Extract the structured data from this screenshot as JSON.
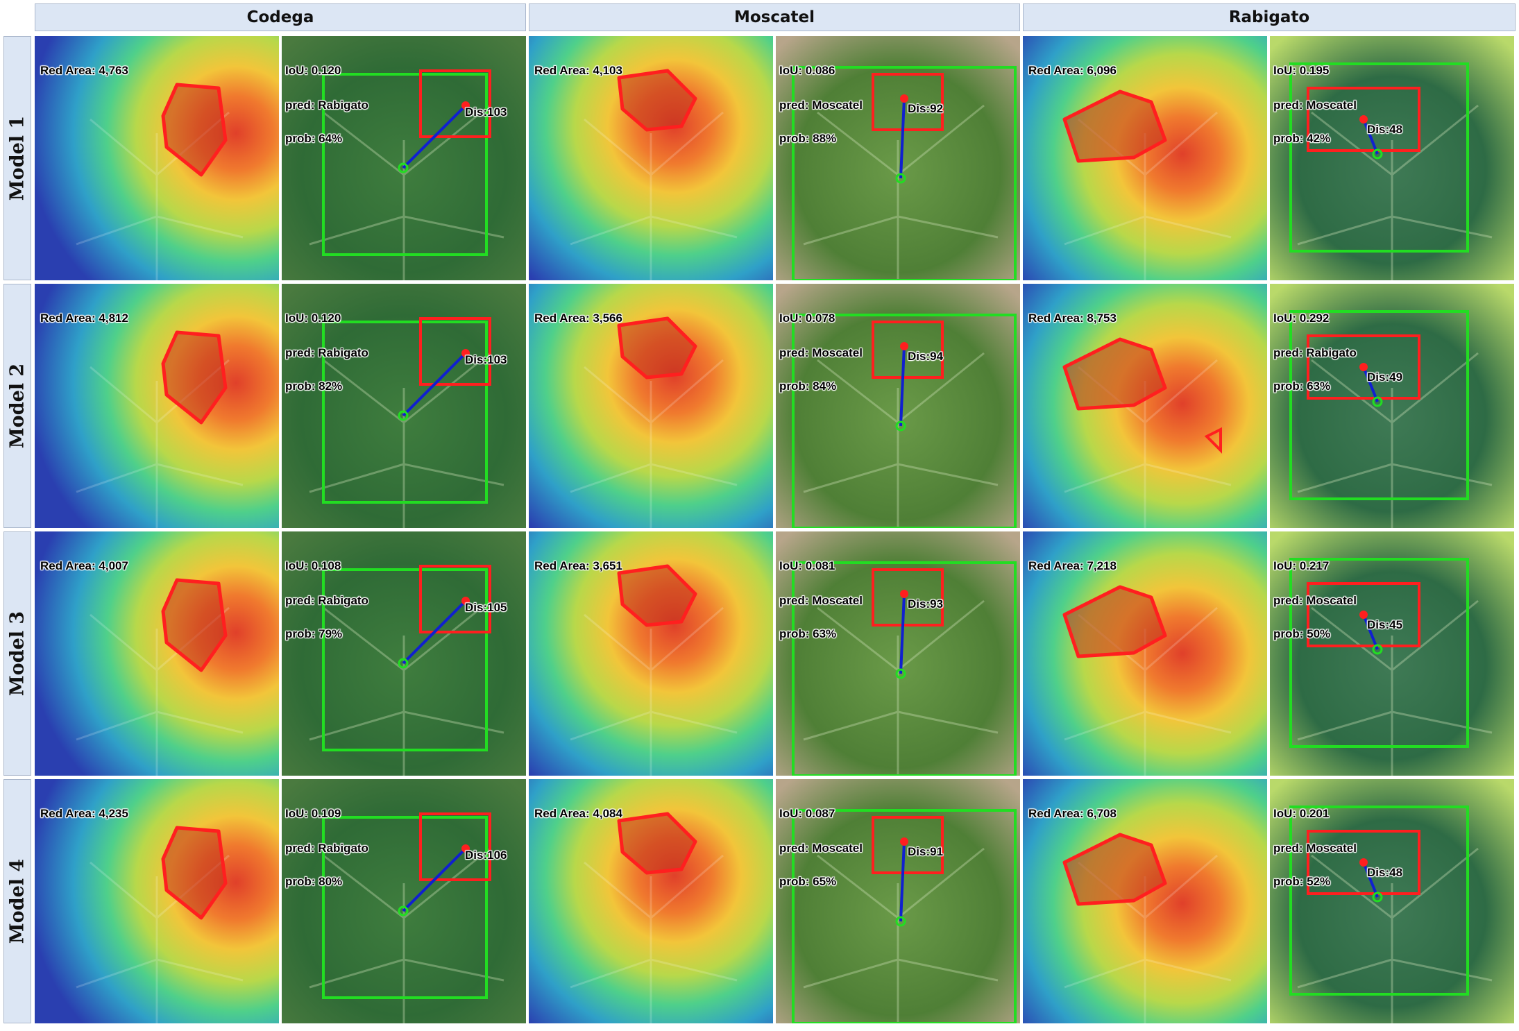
{
  "columns": [
    "Codega",
    "Moscatel",
    "Rabigato"
  ],
  "rows": [
    "Model 1",
    "Model 2",
    "Model 3",
    "Model 4"
  ],
  "colors": {
    "header_bg": "#dce6f4",
    "polygon": "#ff1f1f",
    "pred_box": "#ff1f1f",
    "true_box": "#22dd22",
    "distance_line": "#1020d0"
  },
  "cells": [
    [
      {
        "red_area": "Red Area: 4,763",
        "iou": "IoU: 0.120",
        "pred": "pred: Rabigato",
        "prob": "prob: 64%",
        "dis": "Dis:103"
      },
      {
        "red_area": "Red Area: 4,103",
        "iou": "IoU: 0.086",
        "pred": "pred: Moscatel",
        "prob": "prob: 88%",
        "dis": "Dis:92"
      },
      {
        "red_area": "Red Area: 6,096",
        "iou": "IoU: 0.195",
        "pred": "pred: Moscatel",
        "prob": "prob: 42%",
        "dis": "Dis:48"
      }
    ],
    [
      {
        "red_area": "Red Area: 4,812",
        "iou": "IoU: 0.120",
        "pred": "pred: Rabigato",
        "prob": "prob: 82%",
        "dis": "Dis:103"
      },
      {
        "red_area": "Red Area: 3,566",
        "iou": "IoU: 0.078",
        "pred": "pred: Moscatel",
        "prob": "prob: 84%",
        "dis": "Dis:94"
      },
      {
        "red_area": "Red Area: 8,753",
        "iou": "IoU: 0.292",
        "pred": "pred: Rabigato",
        "prob": "prob: 63%",
        "dis": "Dis:49"
      }
    ],
    [
      {
        "red_area": "Red Area: 4,007",
        "iou": "IoU: 0.108",
        "pred": "pred: Rabigato",
        "prob": "prob: 79%",
        "dis": "Dis:105"
      },
      {
        "red_area": "Red Area: 3,651",
        "iou": "IoU: 0.081",
        "pred": "pred: Moscatel",
        "prob": "prob: 63%",
        "dis": "Dis:93"
      },
      {
        "red_area": "Red Area: 7,218",
        "iou": "IoU: 0.217",
        "pred": "pred: Moscatel",
        "prob": "prob: 50%",
        "dis": "Dis:45"
      }
    ],
    [
      {
        "red_area": "Red Area: 4,235",
        "iou": "IoU: 0.109",
        "pred": "pred: Rabigato",
        "prob": "prob: 80%",
        "dis": "Dis:106"
      },
      {
        "red_area": "Red Area: 4,084",
        "iou": "IoU: 0.087",
        "pred": "pred: Moscatel",
        "prob": "prob: 65%",
        "dis": "Dis:91"
      },
      {
        "red_area": "Red Area: 6,708",
        "iou": "IoU: 0.201",
        "pred": "pred: Moscatel",
        "prob": "prob: 52%",
        "dis": "Dis:48"
      }
    ]
  ]
}
